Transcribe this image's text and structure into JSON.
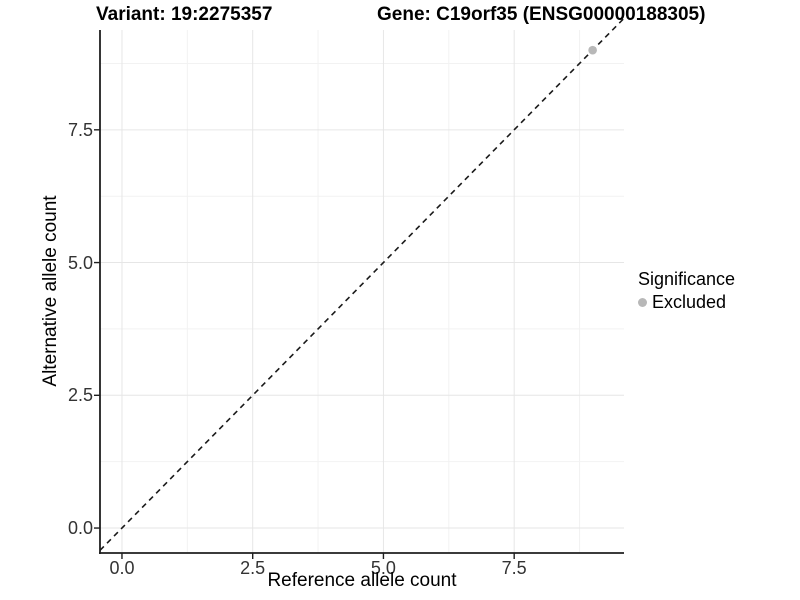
{
  "figure": {
    "title_left": "Variant: 19:2275357",
    "title_right": "Gene: C19orf35 (ENSG00000188305)"
  },
  "chart_data": {
    "type": "scatter",
    "title": "Variant: 19:2275357    Gene: C19orf35 (ENSG00000188305)",
    "xlabel": "Reference allele count",
    "ylabel": "Alternative allele count",
    "xlim": [
      -0.42,
      9.6
    ],
    "ylim": [
      -0.47,
      9.38
    ],
    "x_major_ticks": [
      0,
      2.5,
      5,
      7.5
    ],
    "y_major_ticks": [
      0,
      2.5,
      5,
      7.5
    ],
    "x_minor_ticks": [
      1.25,
      3.75,
      6.25,
      8.75
    ],
    "y_minor_ticks": [
      1.25,
      3.75,
      6.25,
      8.75
    ],
    "x_tick_labels": [
      "0.0",
      "2.5",
      "5.0",
      "7.5"
    ],
    "y_tick_labels": [
      "0.0",
      "2.5",
      "5.0",
      "7.5"
    ],
    "grid": true,
    "series": [
      {
        "name": "Excluded",
        "color": "#b8b8b8",
        "points": [
          {
            "x": 9,
            "y": 9
          }
        ]
      }
    ],
    "reference_line": {
      "style": "dashed",
      "slope": 1,
      "intercept": 0,
      "color": "#1a1a1a"
    },
    "legend": {
      "title": "Significance",
      "position": "right",
      "entries": [
        {
          "label": "Excluded",
          "color": "#b8b8b8"
        }
      ]
    }
  },
  "colors": {
    "background": "#ffffff",
    "grid_major": "#e6e6e6",
    "grid_minor": "#f2f2f2",
    "axis_line": "#1f1f1f",
    "tick_label": "#333333",
    "point": "#b8b8b8"
  }
}
